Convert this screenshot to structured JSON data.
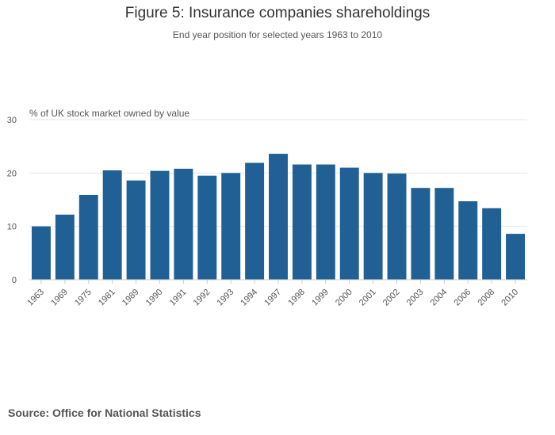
{
  "chart_data": {
    "type": "bar",
    "title": "Figure 5: Insurance companies shareholdings",
    "subtitle": "End year position for selected years 1963 to 2010",
    "ylabel": "% of UK stock market owned by value",
    "xlabel": "",
    "ylim": [
      0,
      30
    ],
    "yticks": [
      0,
      10,
      20,
      30
    ],
    "grid": true,
    "categories": [
      "1963",
      "1969",
      "1975",
      "1981",
      "1989",
      "1990",
      "1991",
      "1992",
      "1993",
      "1994",
      "1997",
      "1998",
      "1999",
      "2000",
      "2001",
      "2002",
      "2003",
      "2004",
      "2006",
      "2008",
      "2010"
    ],
    "values": [
      10.0,
      12.2,
      15.9,
      20.5,
      18.6,
      20.4,
      20.8,
      19.5,
      20.0,
      21.9,
      23.6,
      21.6,
      21.6,
      21.0,
      20.0,
      19.9,
      17.2,
      17.2,
      14.7,
      13.4,
      8.6
    ],
    "source": "Source: Office for National Statistics",
    "bar_color": "#206095",
    "grid_color": "#e5e5e5"
  }
}
